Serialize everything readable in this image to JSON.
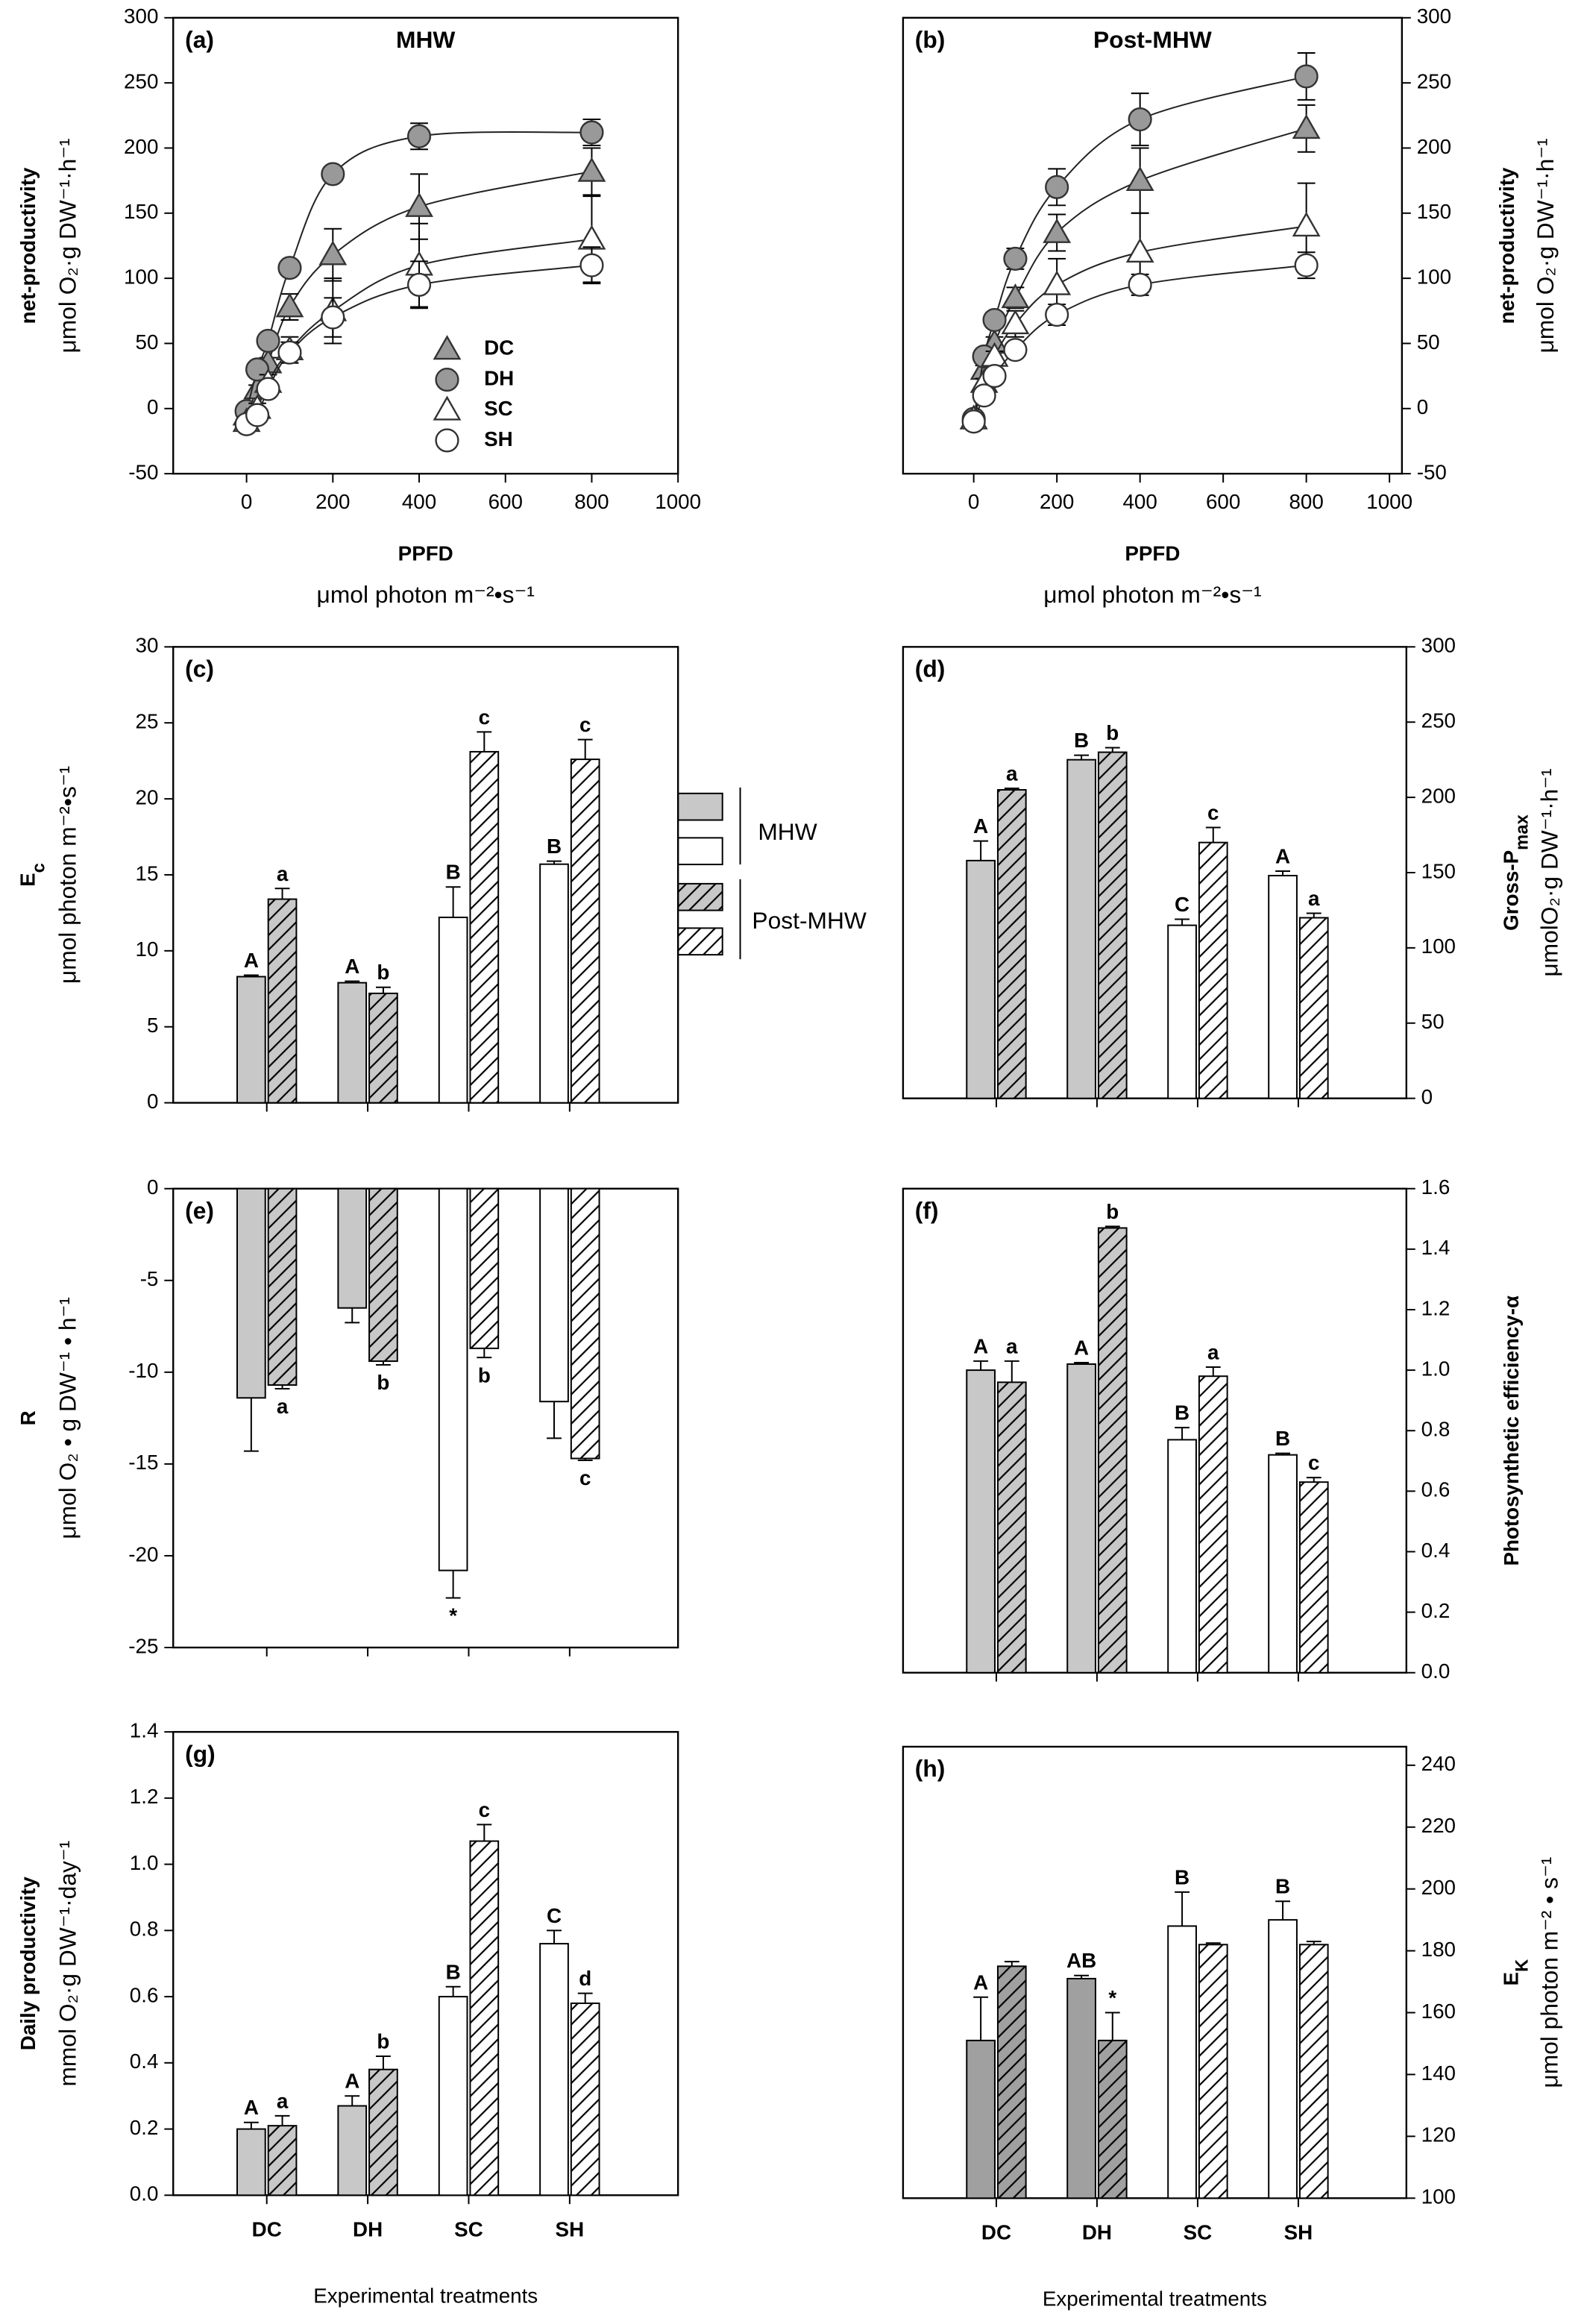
{
  "legend": [
    "MHW",
    "Post-MHW"
  ],
  "legend_colors": [
    "#c8c8c8",
    "#ffffff"
  ],
  "chart_data": [
    {
      "type": "scatter",
      "label": "(a)",
      "title": "MHW",
      "xlabel": "PPFD",
      "xlabel2": "μmol photon m⁻²•s⁻¹",
      "ylabel": "net-productivity",
      "ylabel2": "μmol O₂·g DW⁻¹·h⁻¹",
      "yaxis": "left",
      "x": [
        0,
        25,
        50,
        100,
        200,
        400,
        800
      ],
      "xlim": [
        -170,
        1000
      ],
      "xticks": [
        0,
        200,
        400,
        600,
        800,
        1000
      ],
      "ylim": [
        -50,
        300
      ],
      "yticks": [
        -50,
        0,
        50,
        100,
        150,
        200,
        250,
        300
      ],
      "series": [
        {
          "name": "DC",
          "marker": "triangle",
          "color": "#999999",
          "values": [
            -5,
            15,
            35,
            78,
            118,
            155,
            182
          ],
          "errors": [
            3,
            3,
            4,
            10,
            20,
            25,
            18
          ]
        },
        {
          "name": "DH",
          "marker": "circle",
          "color": "#999999",
          "values": [
            -2,
            30,
            52,
            108,
            180,
            209,
            212
          ],
          "errors": [
            2,
            3,
            4,
            5,
            4,
            10,
            10
          ]
        },
        {
          "name": "SC",
          "marker": "triangle",
          "color": "#ffffff",
          "values": [
            -10,
            0,
            20,
            45,
            75,
            110,
            130
          ],
          "errors": [
            3,
            4,
            6,
            10,
            25,
            32,
            33
          ]
        },
        {
          "name": "SH",
          "marker": "circle",
          "color": "#ffffff",
          "values": [
            -12,
            -5,
            15,
            43,
            70,
            95,
            110
          ],
          "errors": [
            3,
            4,
            5,
            8,
            15,
            18,
            14
          ]
        }
      ]
    },
    {
      "type": "scatter",
      "label": "(b)",
      "title": "Post-MHW",
      "xlabel": "PPFD",
      "xlabel2": "μmol photon m⁻²•s⁻¹",
      "ylabel": "net-productivity",
      "ylabel2": "μmol O₂·g DW⁻¹·h⁻¹",
      "yaxis": "right",
      "x": [
        0,
        25,
        50,
        100,
        200,
        400,
        800
      ],
      "xlim": [
        -170,
        1030
      ],
      "xticks": [
        0,
        200,
        400,
        600,
        800,
        1000
      ],
      "ylim": [
        -50,
        300
      ],
      "yticks": [
        -50,
        0,
        50,
        100,
        150,
        200,
        250,
        300
      ],
      "series": [
        {
          "marker": "triangle",
          "color": "#999999",
          "values": [
            -8,
            30,
            50,
            85,
            135,
            175,
            215
          ],
          "errors": [
            2,
            3,
            5,
            8,
            14,
            25,
            18
          ]
        },
        {
          "marker": "circle",
          "color": "#999999",
          "values": [
            -8,
            40,
            68,
            115,
            170,
            222,
            255
          ],
          "errors": [
            2,
            3,
            4,
            8,
            14,
            20,
            18
          ]
        },
        {
          "marker": "triangle",
          "color": "#ffffff",
          "values": [
            -8,
            20,
            40,
            65,
            95,
            120,
            140
          ],
          "errors": [
            2,
            3,
            4,
            10,
            20,
            30,
            33
          ]
        },
        {
          "marker": "circle",
          "color": "#ffffff",
          "values": [
            -10,
            10,
            25,
            45,
            72,
            95,
            110
          ],
          "errors": [
            2,
            3,
            3,
            5,
            8,
            8,
            10
          ]
        }
      ]
    },
    {
      "type": "bar",
      "label": "(c)",
      "ylabel": {
        "main": "E",
        "sub": "c"
      },
      "ylabel2": "μmol photon m⁻²•s⁻¹",
      "yaxis": "left",
      "ylim": [
        0,
        30
      ],
      "yticks": [
        0,
        5,
        10,
        15,
        20,
        25,
        30
      ],
      "colors": [
        "#c8c8c8",
        "#c8c8c8",
        "#ffffff",
        "#ffffff"
      ],
      "series": [
        {
          "values": [
            8.3,
            7.9,
            12.2,
            15.7
          ],
          "errors": [
            0.1,
            0.1,
            2,
            0.2
          ],
          "letters": [
            "A",
            "A",
            "B",
            "B"
          ]
        },
        {
          "hatch": true,
          "values": [
            13.4,
            7.2,
            23.1,
            22.6
          ],
          "errors": [
            0.7,
            0.4,
            1.3,
            1.3
          ],
          "letters": [
            "a",
            "b",
            "c",
            "c"
          ]
        }
      ]
    },
    {
      "type": "bar",
      "label": "(d)",
      "ylabel": {
        "main": "Gross-P",
        "sub": "max"
      },
      "ylabel2": "μmolO₂·g DW⁻¹·h⁻¹",
      "yaxis": "right",
      "ylim": [
        0,
        300
      ],
      "yticks": [
        0,
        50,
        100,
        150,
        200,
        250,
        300
      ],
      "colors": [
        "#c8c8c8",
        "#c8c8c8",
        "#ffffff",
        "#ffffff"
      ],
      "series": [
        {
          "values": [
            158,
            225,
            115,
            148
          ],
          "errors": [
            13,
            3,
            4,
            3
          ],
          "letters": [
            "A",
            "B",
            "C",
            "A"
          ]
        },
        {
          "hatch": true,
          "values": [
            205,
            230,
            170,
            120
          ],
          "errors": [
            1,
            3,
            10,
            3
          ],
          "letters": [
            "a",
            "b",
            "c",
            "a"
          ]
        }
      ]
    },
    {
      "type": "bar",
      "label": "(e)",
      "ylabel": "R",
      "ylabel2": "μmol O₂ • g DW⁻¹ • h⁻¹",
      "yaxis": "left",
      "ylim": [
        -25,
        0
      ],
      "yticks": [
        -25,
        -20,
        -15,
        -10,
        -5,
        0
      ],
      "colors": [
        "#c8c8c8",
        "#c8c8c8",
        "#ffffff",
        "#ffffff"
      ],
      "series": [
        {
          "values": [
            -11.4,
            -6.5,
            -20.8,
            -11.6
          ],
          "errors": [
            2.9,
            0.8,
            1.5,
            2
          ],
          "letters": [
            null,
            null,
            "*",
            null
          ]
        },
        {
          "hatch": true,
          "values": [
            -10.7,
            -9.4,
            -8.7,
            -14.7
          ],
          "errors": [
            0.2,
            0.2,
            0.5,
            0.1
          ],
          "letters": [
            "a",
            "b",
            "b",
            "c"
          ]
        }
      ]
    },
    {
      "type": "bar",
      "label": "(f)",
      "ylabel": "Photosynthetic efficiency-α",
      "yaxis": "right",
      "ylim": [
        0,
        1.6
      ],
      "yticks": [
        {
          "value": 0,
          "label": "0.0"
        },
        0.2,
        0.4,
        0.6,
        0.8,
        {
          "value": 1,
          "label": "1.0"
        },
        1.2,
        1.4,
        1.6
      ],
      "colors": [
        "#c8c8c8",
        "#c8c8c8",
        "#ffffff",
        "#ffffff"
      ],
      "series": [
        {
          "values": [
            1.0,
            1.02,
            0.77,
            0.72
          ],
          "errors": [
            0.03,
            0.005,
            0.04,
            0.005
          ],
          "letters": [
            "A",
            "A",
            "B",
            "B"
          ]
        },
        {
          "hatch": true,
          "values": [
            0.96,
            1.47,
            0.98,
            0.63
          ],
          "errors": [
            0.07,
            0.005,
            0.03,
            0.015
          ],
          "letters": [
            "a",
            "b",
            "a",
            "c"
          ]
        }
      ]
    },
    {
      "type": "bar",
      "label": "(g)",
      "ylabel": "Daily productivity",
      "ylabel2": "mmol O₂·g DW⁻¹·day⁻¹",
      "yaxis": "left",
      "categories": [
        "DC",
        "DH",
        "SC",
        "SH"
      ],
      "xlabel": "Experimental treatments",
      "ylim": [
        0,
        1.4
      ],
      "yticks": [
        {
          "value": 0,
          "label": "0.0"
        },
        0.2,
        0.4,
        0.6,
        0.8,
        {
          "value": 1,
          "label": "1.0"
        },
        1.2,
        1.4
      ],
      "colors": [
        "#c8c8c8",
        "#c8c8c8",
        "#ffffff",
        "#ffffff"
      ],
      "series": [
        {
          "values": [
            0.2,
            0.27,
            0.6,
            0.76
          ],
          "errors": [
            0.02,
            0.03,
            0.03,
            0.04
          ],
          "letters": [
            "A",
            "A",
            "B",
            "C"
          ]
        },
        {
          "hatch": true,
          "values": [
            0.21,
            0.38,
            1.07,
            0.58
          ],
          "errors": [
            0.03,
            0.04,
            0.05,
            0.03
          ],
          "letters": [
            "a",
            "b",
            "c",
            "d"
          ]
        }
      ]
    },
    {
      "type": "bar",
      "label": "(h)",
      "ylabel": {
        "main": "E",
        "sub": "K"
      },
      "ylabel2": "μmol photon m⁻² • s⁻¹",
      "yaxis": "right",
      "categories": [
        "DC",
        "DH",
        "SC",
        "SH"
      ],
      "xlabel": "Experimental treatments",
      "ylim": [
        100,
        246
      ],
      "yticks": [
        100,
        120,
        140,
        160,
        180,
        200,
        220,
        240
      ],
      "colors": [
        "#a0a0a0",
        "#a0a0a0",
        "#ffffff",
        "#ffffff"
      ],
      "series": [
        {
          "values": [
            151,
            171,
            188,
            190
          ],
          "errors": [
            14,
            1,
            11,
            6
          ],
          "letters": [
            "A",
            "AB",
            "B",
            "B"
          ]
        },
        {
          "hatch": true,
          "values": [
            175,
            151,
            182,
            182
          ],
          "errors": [
            1.5,
            9,
            0.5,
            1
          ],
          "letters": [
            null,
            "*",
            null,
            null
          ]
        }
      ]
    }
  ]
}
